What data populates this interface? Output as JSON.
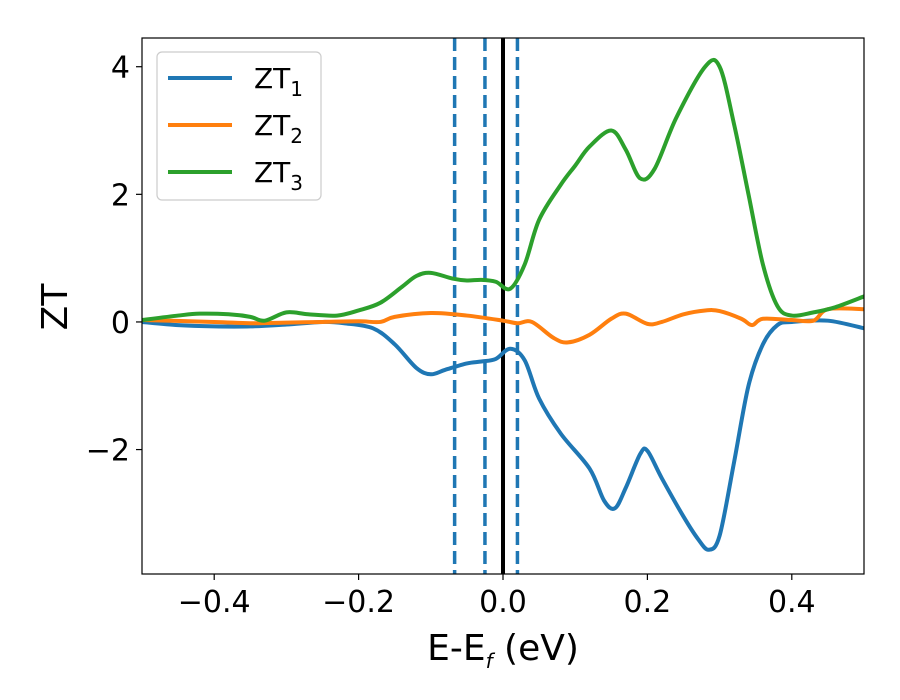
{
  "chart_data": {
    "type": "line",
    "xlabel": {
      "main": "E-E",
      "sub": "f",
      "suffix": " (eV)"
    },
    "ylabel": "ZT",
    "xlim": [
      -0.5,
      0.5
    ],
    "ylim": [
      -3.95,
      4.45
    ],
    "xticks": [
      {
        "value": -0.4,
        "label": "−0.4"
      },
      {
        "value": -0.2,
        "label": "−0.2"
      },
      {
        "value": 0.0,
        "label": "0.0"
      },
      {
        "value": 0.2,
        "label": "0.2"
      },
      {
        "value": 0.4,
        "label": "0.4"
      }
    ],
    "yticks": [
      {
        "value": -2,
        "label": "−2"
      },
      {
        "value": 0,
        "label": "0"
      },
      {
        "value": 2,
        "label": "2"
      },
      {
        "value": 4,
        "label": "4"
      }
    ],
    "grid": false,
    "legend_position": "top-left",
    "vlines": [
      {
        "x": -0.067,
        "style": "dashed",
        "color": "#1f77b4"
      },
      {
        "x": -0.025,
        "style": "dashed",
        "color": "#1f77b4"
      },
      {
        "x": 0.0,
        "style": "solid",
        "color": "#000000"
      },
      {
        "x": 0.02,
        "style": "dashed",
        "color": "#1f77b4"
      }
    ],
    "series": [
      {
        "name": "ZT",
        "sub": "1",
        "color": "#1f77b4",
        "points": [
          [
            -0.5,
            0.0
          ],
          [
            -0.45,
            -0.05
          ],
          [
            -0.4,
            -0.07
          ],
          [
            -0.35,
            -0.07
          ],
          [
            -0.3,
            -0.04
          ],
          [
            -0.25,
            0.0
          ],
          [
            -0.22,
            -0.02
          ],
          [
            -0.18,
            -0.1
          ],
          [
            -0.15,
            -0.35
          ],
          [
            -0.12,
            -0.72
          ],
          [
            -0.1,
            -0.82
          ],
          [
            -0.08,
            -0.75
          ],
          [
            -0.05,
            -0.65
          ],
          [
            -0.03,
            -0.62
          ],
          [
            -0.01,
            -0.58
          ],
          [
            0.01,
            -0.42
          ],
          [
            0.03,
            -0.6
          ],
          [
            0.05,
            -1.2
          ],
          [
            0.08,
            -1.75
          ],
          [
            0.12,
            -2.3
          ],
          [
            0.14,
            -2.8
          ],
          [
            0.155,
            -2.92
          ],
          [
            0.17,
            -2.6
          ],
          [
            0.19,
            -2.07
          ],
          [
            0.2,
            -2.02
          ],
          [
            0.22,
            -2.45
          ],
          [
            0.25,
            -3.05
          ],
          [
            0.27,
            -3.4
          ],
          [
            0.285,
            -3.57
          ],
          [
            0.3,
            -3.35
          ],
          [
            0.32,
            -2.2
          ],
          [
            0.34,
            -1.0
          ],
          [
            0.36,
            -0.35
          ],
          [
            0.38,
            -0.05
          ],
          [
            0.4,
            0.0
          ],
          [
            0.45,
            0.02
          ],
          [
            0.5,
            -0.1
          ]
        ]
      },
      {
        "name": "ZT",
        "sub": "2",
        "color": "#ff7f0e",
        "points": [
          [
            -0.5,
            0.03
          ],
          [
            -0.4,
            0.0
          ],
          [
            -0.35,
            -0.02
          ],
          [
            -0.3,
            -0.01
          ],
          [
            -0.25,
            0.0
          ],
          [
            -0.2,
            0.01
          ],
          [
            -0.17,
            0.0
          ],
          [
            -0.15,
            0.08
          ],
          [
            -0.1,
            0.14
          ],
          [
            -0.05,
            0.1
          ],
          [
            0.0,
            0.02
          ],
          [
            0.02,
            -0.02
          ],
          [
            0.04,
            0.0
          ],
          [
            0.07,
            -0.25
          ],
          [
            0.09,
            -0.32
          ],
          [
            0.12,
            -0.2
          ],
          [
            0.15,
            0.05
          ],
          [
            0.17,
            0.13
          ],
          [
            0.2,
            -0.03
          ],
          [
            0.22,
            0.0
          ],
          [
            0.25,
            0.12
          ],
          [
            0.28,
            0.18
          ],
          [
            0.3,
            0.17
          ],
          [
            0.33,
            0.05
          ],
          [
            0.345,
            -0.05
          ],
          [
            0.36,
            0.05
          ],
          [
            0.4,
            0.03
          ],
          [
            0.43,
            0.02
          ],
          [
            0.45,
            0.2
          ],
          [
            0.5,
            0.2
          ]
        ]
      },
      {
        "name": "ZT",
        "sub": "3",
        "color": "#2ca02c",
        "points": [
          [
            -0.5,
            0.03
          ],
          [
            -0.45,
            0.1
          ],
          [
            -0.42,
            0.13
          ],
          [
            -0.38,
            0.12
          ],
          [
            -0.35,
            0.08
          ],
          [
            -0.33,
            0.02
          ],
          [
            -0.3,
            0.15
          ],
          [
            -0.27,
            0.12
          ],
          [
            -0.23,
            0.1
          ],
          [
            -0.2,
            0.18
          ],
          [
            -0.17,
            0.3
          ],
          [
            -0.14,
            0.55
          ],
          [
            -0.12,
            0.72
          ],
          [
            -0.1,
            0.77
          ],
          [
            -0.07,
            0.68
          ],
          [
            -0.05,
            0.65
          ],
          [
            -0.03,
            0.66
          ],
          [
            -0.01,
            0.63
          ],
          [
            0.01,
            0.52
          ],
          [
            0.03,
            0.9
          ],
          [
            0.05,
            1.6
          ],
          [
            0.08,
            2.15
          ],
          [
            0.1,
            2.45
          ],
          [
            0.12,
            2.75
          ],
          [
            0.15,
            3.0
          ],
          [
            0.17,
            2.7
          ],
          [
            0.19,
            2.25
          ],
          [
            0.21,
            2.4
          ],
          [
            0.24,
            3.2
          ],
          [
            0.28,
            4.0
          ],
          [
            0.3,
            4.0
          ],
          [
            0.32,
            3.1
          ],
          [
            0.34,
            2.0
          ],
          [
            0.36,
            0.9
          ],
          [
            0.38,
            0.25
          ],
          [
            0.4,
            0.1
          ],
          [
            0.43,
            0.15
          ],
          [
            0.46,
            0.23
          ],
          [
            0.5,
            0.4
          ]
        ]
      }
    ]
  }
}
